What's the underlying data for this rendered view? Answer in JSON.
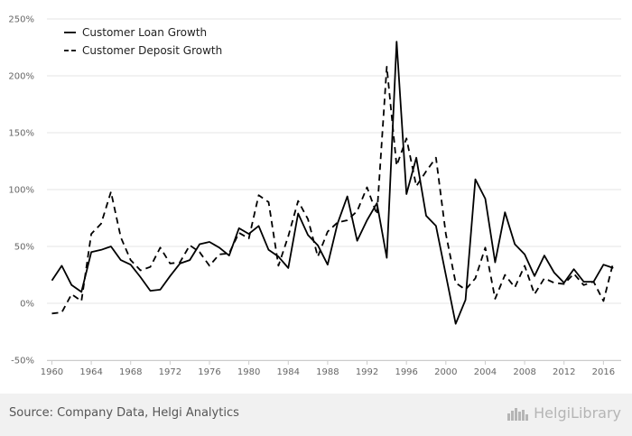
{
  "chart_data": {
    "type": "line",
    "x": [
      1960,
      1961,
      1962,
      1963,
      1964,
      1965,
      1966,
      1967,
      1968,
      1969,
      1970,
      1971,
      1972,
      1973,
      1974,
      1975,
      1976,
      1977,
      1978,
      1979,
      1980,
      1981,
      1982,
      1983,
      1984,
      1985,
      1986,
      1987,
      1988,
      1989,
      1990,
      1991,
      1992,
      1993,
      1994,
      1995,
      1996,
      1997,
      1998,
      1999,
      2000,
      2001,
      2002,
      2003,
      2004,
      2005,
      2006,
      2007,
      2008,
      2009,
      2010,
      2011,
      2012,
      2013,
      2014,
      2015,
      2016,
      2017
    ],
    "series": [
      {
        "name": "Customer Loan Growth",
        "style": "solid",
        "values": [
          20,
          33,
          16,
          10,
          45,
          47,
          50,
          38,
          34,
          23,
          11,
          12,
          24,
          35,
          38,
          52,
          54,
          49,
          42,
          66,
          61,
          68,
          47,
          41,
          31,
          79,
          60,
          51,
          34,
          70,
          94,
          55,
          73,
          88,
          40,
          230,
          96,
          128,
          77,
          68,
          25,
          -18,
          3,
          109,
          92,
          36,
          80,
          52,
          43,
          24,
          42,
          27,
          18,
          30,
          19,
          19,
          34,
          31
        ]
      },
      {
        "name": "Customer Deposit Growth",
        "style": "dashed",
        "values": [
          -9,
          -8,
          8,
          2,
          61,
          70,
          98,
          58,
          38,
          29,
          32,
          49,
          35,
          36,
          51,
          45,
          33,
          43,
          44,
          62,
          57,
          95,
          89,
          33,
          59,
          90,
          74,
          41,
          63,
          71,
          73,
          81,
          102,
          78,
          208,
          121,
          145,
          103,
          116,
          128,
          61,
          18,
          12,
          22,
          49,
          4,
          25,
          14,
          33,
          8,
          22,
          18,
          17,
          26,
          16,
          19,
          2,
          36
        ]
      }
    ],
    "xticks": [
      1960,
      1964,
      1968,
      1972,
      1976,
      1980,
      1984,
      1988,
      1992,
      1996,
      2000,
      2004,
      2008,
      2012,
      2016
    ],
    "yticks": [
      -50,
      0,
      50,
      100,
      150,
      200,
      250
    ],
    "ytick_labels": [
      "-50%",
      "0%",
      "50%",
      "100%",
      "150%",
      "200%",
      "250%"
    ],
    "xlim": [
      1959.5,
      2017.8
    ],
    "ylim": [
      -50,
      250
    ],
    "title": "",
    "xlabel": "",
    "ylabel": "",
    "grid": "horizontal",
    "legend": "top-left",
    "colors": {
      "line": "#000000",
      "grid": "#e6e6e6",
      "axis": "#cccccc"
    }
  },
  "footer": {
    "source": "Source: Company Data, Helgi Analytics",
    "brand": "HelgiLibrary"
  }
}
